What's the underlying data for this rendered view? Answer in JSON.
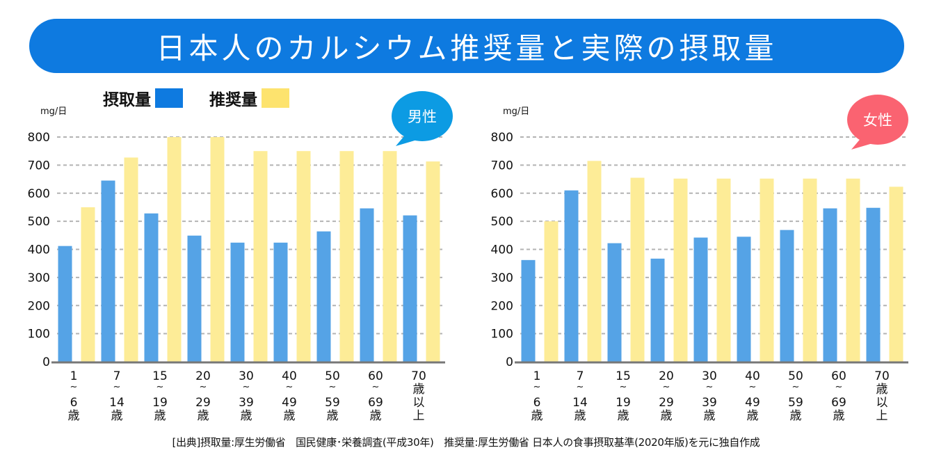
{
  "title": "日本人のカルシウム推奨量と実際の摂取量",
  "legend": [
    {
      "label": "摂取量",
      "color": "#0e7ae0"
    },
    {
      "label": "推奨量",
      "color": "#fde36e"
    }
  ],
  "footer": "[出典]摂取量:厚生労働省　国民健康･栄養調査(平成30年)　推奨量:厚生労働省 日本人の食事摂取基準(2020年版)を元に独自作成",
  "chart_data": [
    {
      "type": "bar",
      "title": "男性",
      "badge_color": "#0c9be3",
      "ylabel": "mg/日",
      "xlabel": "",
      "ylim": [
        0,
        800
      ],
      "yticks": [
        0,
        100,
        200,
        300,
        400,
        500,
        600,
        700,
        800
      ],
      "grid": true,
      "categories": [
        [
          "1",
          "~",
          "6",
          "歳"
        ],
        [
          "7",
          "~",
          "14",
          "歳"
        ],
        [
          "15",
          "~",
          "19",
          "歳"
        ],
        [
          "20",
          "~",
          "29",
          "歳"
        ],
        [
          "30",
          "~",
          "39",
          "歳"
        ],
        [
          "40",
          "~",
          "49",
          "歳"
        ],
        [
          "50",
          "~",
          "59",
          "歳"
        ],
        [
          "60",
          "~",
          "69",
          "歳"
        ],
        [
          "70",
          "歳",
          "以",
          "上"
        ]
      ],
      "series": [
        {
          "name": "摂取量",
          "color": "#55a3e6",
          "values": [
            412,
            645,
            528,
            449,
            424,
            424,
            464,
            546,
            521
          ]
        },
        {
          "name": "推奨量",
          "color": "#fdec97",
          "values": [
            550,
            727,
            800,
            800,
            750,
            750,
            750,
            750,
            713
          ]
        }
      ]
    },
    {
      "type": "bar",
      "title": "女性",
      "badge_color": "#fa6371",
      "ylabel": "mg/日",
      "xlabel": "",
      "ylim": [
        0,
        800
      ],
      "yticks": [
        0,
        100,
        200,
        300,
        400,
        500,
        600,
        700,
        800
      ],
      "grid": true,
      "categories": [
        [
          "1",
          "~",
          "6",
          "歳"
        ],
        [
          "7",
          "~",
          "14",
          "歳"
        ],
        [
          "15",
          "~",
          "19",
          "歳"
        ],
        [
          "20",
          "~",
          "29",
          "歳"
        ],
        [
          "30",
          "~",
          "39",
          "歳"
        ],
        [
          "40",
          "~",
          "49",
          "歳"
        ],
        [
          "50",
          "~",
          "59",
          "歳"
        ],
        [
          "60",
          "~",
          "69",
          "歳"
        ],
        [
          "70",
          "歳",
          "以",
          "上"
        ]
      ],
      "series": [
        {
          "name": "摂取量",
          "color": "#55a3e6",
          "values": [
            362,
            610,
            422,
            367,
            442,
            445,
            469,
            546,
            548
          ]
        },
        {
          "name": "推奨量",
          "color": "#fdec97",
          "values": [
            500,
            715,
            655,
            652,
            652,
            652,
            652,
            652,
            623
          ]
        }
      ]
    }
  ]
}
